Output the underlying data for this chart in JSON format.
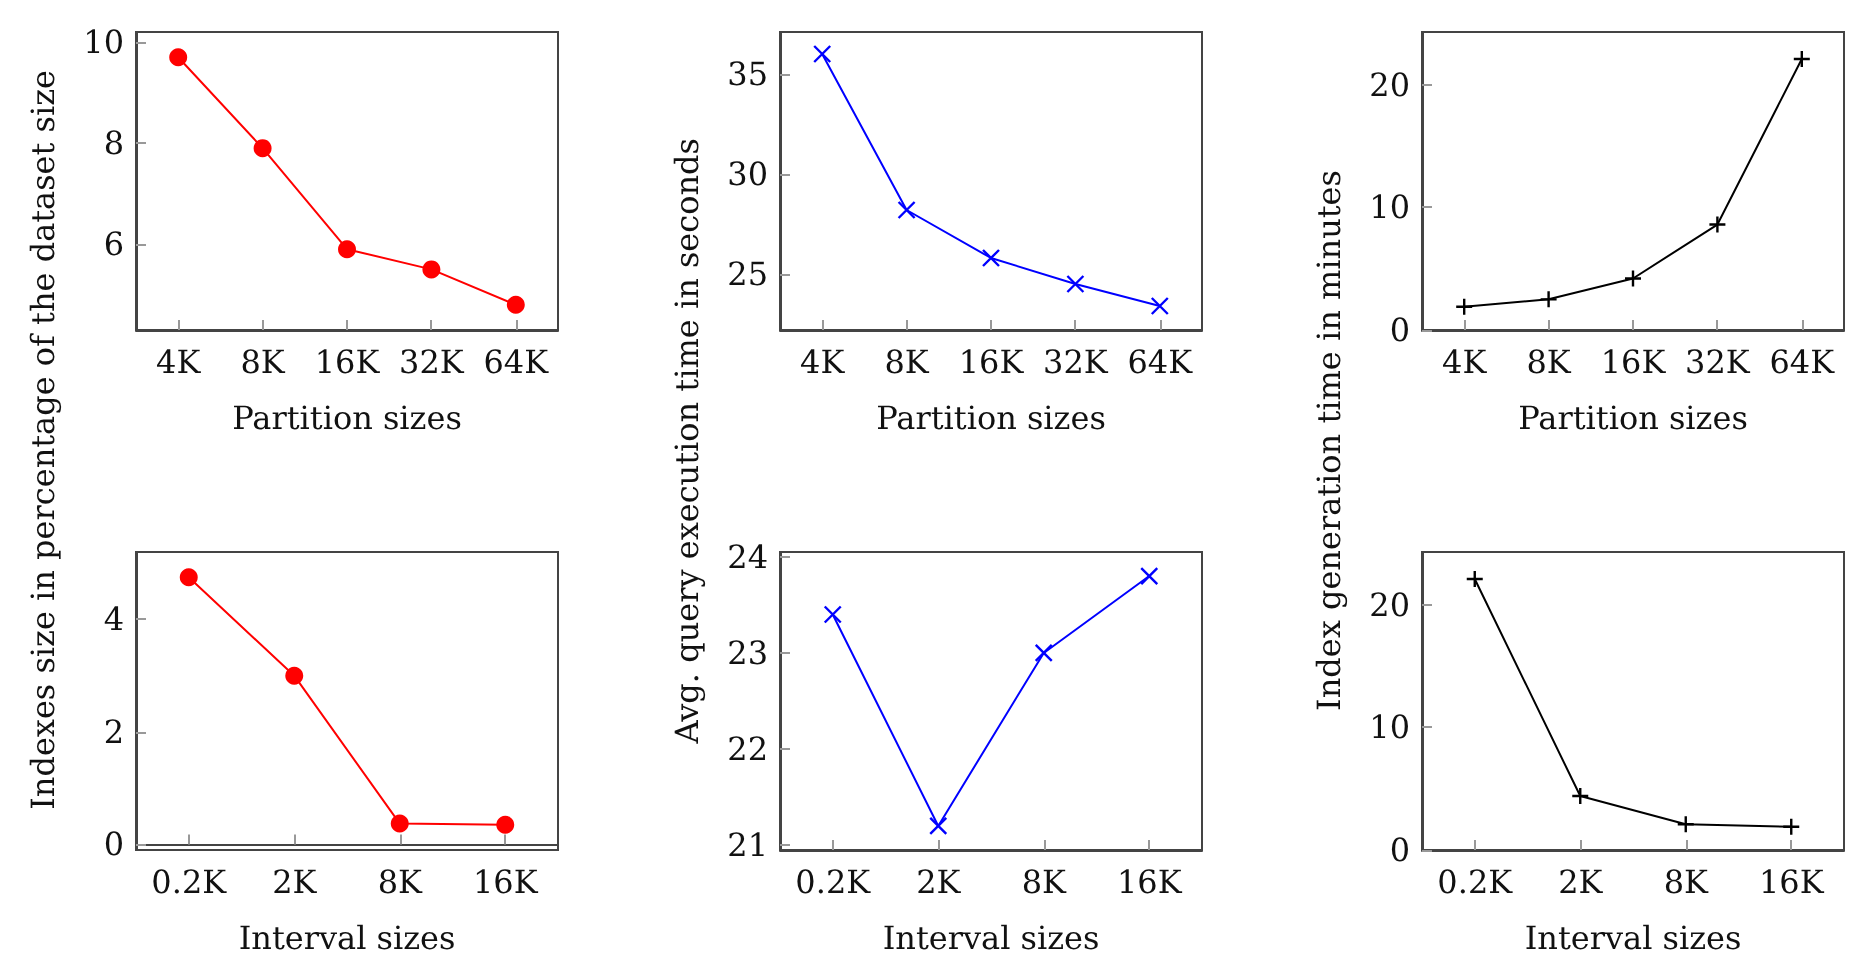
{
  "chart_data": [
    {
      "type": "line",
      "ylabel": "Indexes size in percentage of the dataset size",
      "xlabel": "Partition sizes",
      "categories": [
        "4K",
        "8K",
        "16K",
        "32K",
        "64K"
      ],
      "series": [
        {
          "color": "#ff0000",
          "values": [
            9.7,
            7.9,
            5.9,
            5.5,
            4.8
          ]
        }
      ],
      "ylim": [
        4.3,
        10.2
      ],
      "yticks": [
        6,
        8,
        10
      ],
      "marker": "circle"
    },
    {
      "type": "line",
      "ylabel": "Avg. query execution time in seconds",
      "xlabel": "Partition sizes",
      "categories": [
        "4K",
        "8K",
        "16K",
        "32K",
        "64K"
      ],
      "series": [
        {
          "color": "#0000ff",
          "values": [
            36,
            28.2,
            25.8,
            24.5,
            23.4
          ]
        }
      ],
      "ylim": [
        22.2,
        37.1
      ],
      "yticks": [
        25,
        30,
        35
      ],
      "marker": "cross"
    },
    {
      "type": "line",
      "ylabel": "Index generation time in minutes",
      "xlabel": "Partition sizes",
      "categories": [
        "4K",
        "8K",
        "16K",
        "32K",
        "64K"
      ],
      "series": [
        {
          "color": "#000000",
          "values": [
            1.9,
            2.5,
            4.2,
            8.6,
            22.1
          ]
        }
      ],
      "ylim": [
        0,
        24.3
      ],
      "yticks": [
        0,
        10,
        20
      ],
      "marker": "plus"
    },
    {
      "type": "line",
      "xlabel": "Interval sizes",
      "categories": [
        "0.2K",
        "2K",
        "8K",
        "16K"
      ],
      "series": [
        {
          "color": "#ff0000",
          "values": [
            4.75,
            3.0,
            0.37,
            0.35
          ]
        }
      ],
      "ylim": [
        -0.1,
        5.2
      ],
      "yticks": [
        0,
        2,
        4
      ],
      "marker": "circle"
    },
    {
      "type": "line",
      "xlabel": "Interval sizes",
      "categories": [
        "0.2K",
        "2K",
        "8K",
        "16K"
      ],
      "series": [
        {
          "color": "#0000ff",
          "values": [
            23.4,
            21.2,
            23.0,
            23.8
          ]
        }
      ],
      "ylim": [
        20.95,
        24.05
      ],
      "yticks": [
        21,
        22,
        23,
        24
      ],
      "marker": "cross"
    },
    {
      "type": "line",
      "xlabel": "Interval sizes",
      "categories": [
        "0.2K",
        "2K",
        "8K",
        "16K"
      ],
      "series": [
        {
          "color": "#000000",
          "values": [
            22.1,
            4.4,
            2.1,
            1.9
          ]
        }
      ],
      "ylim": [
        0,
        24.3
      ],
      "yticks": [
        0,
        10,
        20
      ],
      "marker": "plus"
    }
  ]
}
